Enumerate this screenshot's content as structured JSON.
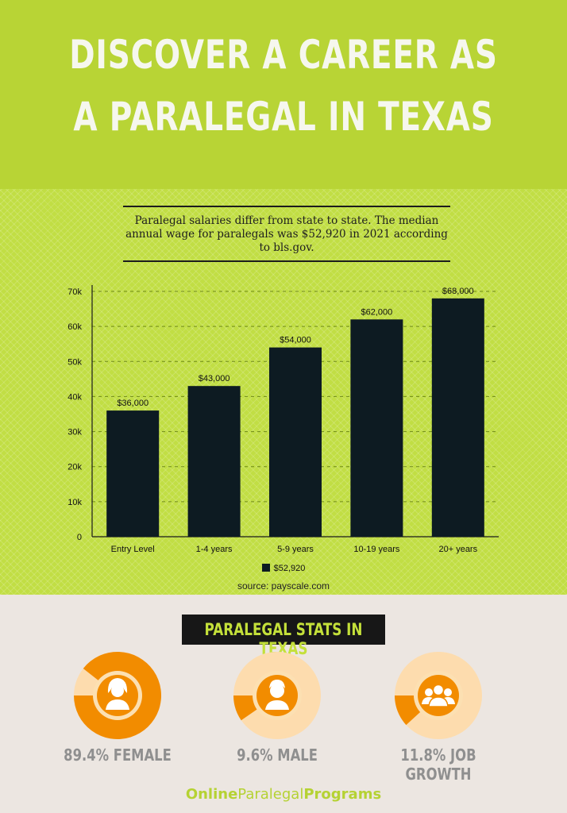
{
  "header": {
    "title_line1": "DISCOVER A CAREER AS",
    "title_line2": "A PARALEGAL IN TEXAS"
  },
  "intro": {
    "text": "Paralegal salaries differ from state to state. The median annual wage for paralegals was $52,920 in 2021 according to bls.gov."
  },
  "chart_data": {
    "type": "bar",
    "categories": [
      "Entry Level",
      "1-4 years",
      "5-9 years",
      "10-19 years",
      "20+ years"
    ],
    "series": [
      {
        "name": "$52,920",
        "values": [
          36000,
          43000,
          54000,
          62000,
          68000
        ]
      }
    ],
    "data_labels": [
      "$36,000",
      "$43,000",
      "$54,000",
      "$62,000",
      "$68,000"
    ],
    "y_ticks": [
      "0",
      "10k",
      "20k",
      "30k",
      "40k",
      "50k",
      "60k",
      "70k"
    ],
    "ylim": [
      0,
      70000
    ],
    "grid": true,
    "legend_position": "bottom",
    "bar_color": "#0d1b22",
    "source": "source: payscale.com"
  },
  "stats": {
    "title": "PARALEGAL STATS IN TEXAS",
    "items": [
      {
        "label": "89.4% FEMALE",
        "percent": 89.4,
        "icon": "female-person-icon"
      },
      {
        "label": "9.6% MALE",
        "percent": 9.6,
        "icon": "male-person-icon"
      },
      {
        "label": "11.8% JOB GROWTH",
        "percent": 11.8,
        "icon": "group-people-icon"
      }
    ]
  },
  "footer": {
    "brand_part1": "Online",
    "brand_part2": "Paralegal",
    "brand_part3": "Programs"
  },
  "colors": {
    "header_green": "#b8d435",
    "bar": "#0d1b22",
    "donut_orange": "#f28c00",
    "donut_light": "#fddcae",
    "stats_bg": "#ece6e1"
  }
}
